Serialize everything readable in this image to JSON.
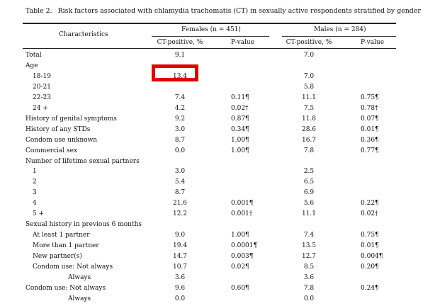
{
  "caption": {
    "number": "Table 2.",
    "text": "Risk factors associated with chlamydia trachomatis (CT) in sexually active respondents stratified by gender"
  },
  "header": {
    "characteristics": "Characteristics",
    "females": "Females (n = 451)",
    "males": "Males (n = 284)",
    "ct_positive": "CT-positive, %",
    "p_value": "P-value"
  },
  "rows": [
    {
      "label": "Total",
      "indent": 0,
      "f_pos": "9.1",
      "f_p": "",
      "m_pos": "7.0",
      "m_p": ""
    },
    {
      "label": "Age",
      "indent": 0,
      "f_pos": "",
      "f_p": "",
      "m_pos": "",
      "m_p": ""
    },
    {
      "label": "18-19",
      "indent": 1,
      "f_pos": "13.4",
      "f_p": "",
      "m_pos": "7.0",
      "m_p": ""
    },
    {
      "label": "20-21",
      "indent": 1,
      "f_pos": "",
      "f_p": "",
      "m_pos": "5.8",
      "m_p": ""
    },
    {
      "label": "22-23",
      "indent": 1,
      "f_pos": "7.4",
      "f_p": "0.11¶",
      "m_pos": "11.1",
      "m_p": "0.75¶"
    },
    {
      "label": "24 +",
      "indent": 1,
      "f_pos": "4.2",
      "f_p": "0.02†",
      "m_pos": "7.5",
      "m_p": "0.78†"
    },
    {
      "label": "History of genital symptoms",
      "indent": 0,
      "f_pos": "9.2",
      "f_p": "0.87¶",
      "m_pos": "11.8",
      "m_p": "0.07¶"
    },
    {
      "label": "History of any STDs",
      "indent": 0,
      "f_pos": "3.0",
      "f_p": "0.34¶",
      "m_pos": "28.6",
      "m_p": "0.01¶"
    },
    {
      "label": "Condom use unknown",
      "indent": 0,
      "f_pos": "8.7",
      "f_p": "1.00¶",
      "m_pos": "16.7",
      "m_p": "0.36¶"
    },
    {
      "label": "Commercial sex",
      "indent": 0,
      "f_pos": "0.0",
      "f_p": "1.00¶",
      "m_pos": "7.8",
      "m_p": "0.77¶"
    },
    {
      "label": "Number of lifetime sexual partners",
      "indent": 0,
      "f_pos": "",
      "f_p": "",
      "m_pos": "",
      "m_p": ""
    },
    {
      "label": "1",
      "indent": 1,
      "f_pos": "3.0",
      "f_p": "",
      "m_pos": "2.5",
      "m_p": ""
    },
    {
      "label": "2",
      "indent": 1,
      "f_pos": "5.4",
      "f_p": "",
      "m_pos": "6.5",
      "m_p": ""
    },
    {
      "label": "3",
      "indent": 1,
      "f_pos": "8.7",
      "f_p": "",
      "m_pos": "6.9",
      "m_p": ""
    },
    {
      "label": "4",
      "indent": 1,
      "f_pos": "21.6",
      "f_p": "0.001¶",
      "m_pos": "5.6",
      "m_p": "0.22¶"
    },
    {
      "label": "5 +",
      "indent": 1,
      "f_pos": "12.2",
      "f_p": "0.001†",
      "m_pos": "11.1",
      "m_p": "0.02†"
    },
    {
      "label": "Sexual history in previous 6 months",
      "indent": 0,
      "f_pos": "",
      "f_p": "",
      "m_pos": "",
      "m_p": ""
    },
    {
      "label": "At least 1 partner",
      "indent": 1,
      "f_pos": "9.0",
      "f_p": "1.00¶",
      "m_pos": "7.4",
      "m_p": "0.75¶"
    },
    {
      "label": "More than 1 partner",
      "indent": 1,
      "f_pos": "19.4",
      "f_p": "0.0001¶",
      "m_pos": "13.5",
      "m_p": "0.01¶"
    },
    {
      "label": "New partner(s)",
      "indent": 1,
      "f_pos": "14.7",
      "f_p": "0.003¶",
      "m_pos": "12.7",
      "m_p": "0.004¶"
    },
    {
      "label": "Condom use: Not always",
      "indent": 1,
      "f_pos": "10.7",
      "f_p": "0.02¶",
      "m_pos": "8.5",
      "m_p": "0.20¶"
    },
    {
      "label": "Always",
      "indent": 2,
      "f_pos": "3.6",
      "f_p": "",
      "m_pos": "3.6",
      "m_p": ""
    },
    {
      "label": "Condom use: Not always",
      "indent": 0,
      "f_pos": "9.6",
      "f_p": "0.60¶",
      "m_pos": "7.8",
      "m_p": "0.24¶"
    },
    {
      "label": "Always",
      "indent": 2,
      "f_pos": "0.0",
      "f_p": "",
      "m_pos": "0.0",
      "m_p": ""
    }
  ]
}
